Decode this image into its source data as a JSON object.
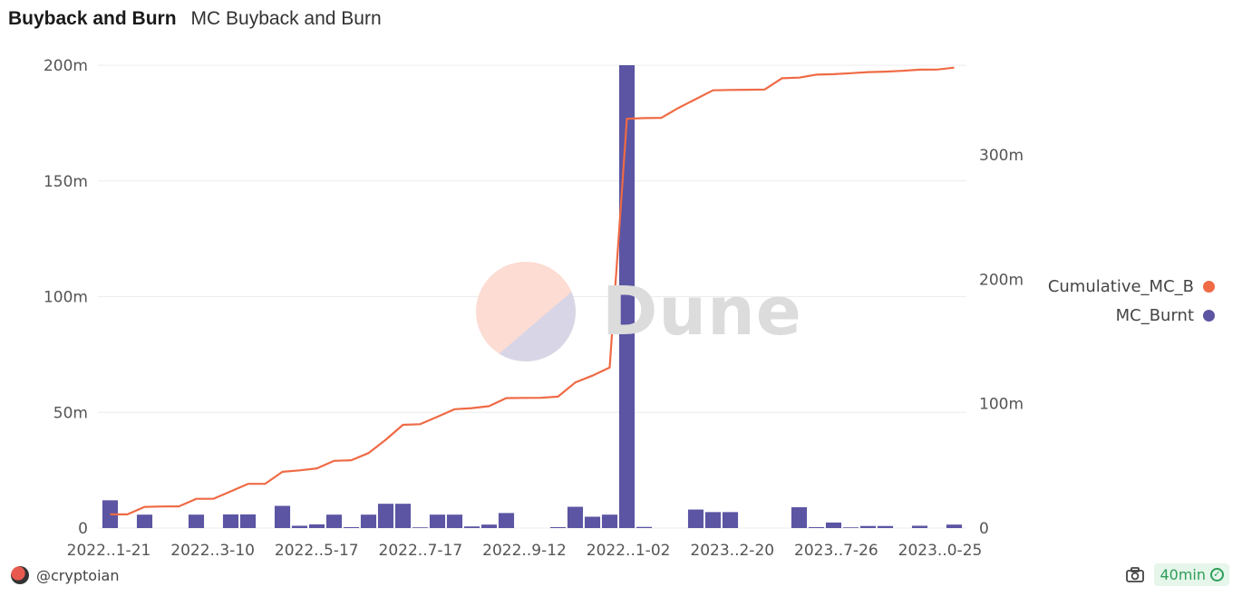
{
  "header": {
    "title": "Buyback and Burn",
    "subtitle": "MC Buyback and Burn"
  },
  "watermark": {
    "text": "Dune"
  },
  "footer": {
    "author": "@cryptoian",
    "refresh_label": "40min"
  },
  "icons": {
    "camera": "camera-icon",
    "check": "check-circle-icon",
    "avatar": "avatar"
  },
  "colors": {
    "bar": "#5b55a3",
    "line": "#ef6a45",
    "grid": "#ececec",
    "text": "#555555"
  },
  "chart_data": {
    "type": "bar+line",
    "title": "",
    "x_tick_labels": [
      "2022..1-21",
      "2022..3-10",
      "2022..5-17",
      "2022..7-17",
      "2022..9-12",
      "2022..1-02",
      "2023..2-20",
      "2023..7-26",
      "2023..0-25"
    ],
    "y_left": {
      "ticks": [
        "0",
        "50m",
        "100m",
        "150m",
        "200m"
      ],
      "range": [
        0,
        200000000
      ]
    },
    "y_right": {
      "ticks": [
        "0",
        "100m",
        "200m",
        "300m"
      ],
      "range": [
        0,
        372000000
      ]
    },
    "legend": {
      "position": "right",
      "entries": [
        {
          "name": "Cumulative_MC_B",
          "color": "#ef6a45"
        },
        {
          "name": "MC_Burnt",
          "color": "#5b55a3"
        }
      ]
    },
    "series": [
      {
        "name": "MC_Burnt",
        "kind": "bar",
        "axis": "left",
        "values": [
          12000000,
          0,
          5800000,
          0,
          0,
          5800000,
          0,
          5900000,
          5900000,
          0,
          9600000,
          1000000,
          1600000,
          5800000,
          400000,
          5800000,
          10500000,
          10500000,
          300000,
          5800000,
          5800000,
          700000,
          1500000,
          6500000,
          0,
          0,
          400000,
          9200000,
          4900000,
          5800000,
          200000000,
          500000,
          0,
          0,
          8000000,
          6900000,
          6900000,
          0,
          0,
          0,
          9000000,
          400000,
          2400000,
          300000,
          900000,
          900000,
          0,
          1000000,
          0,
          1500000
        ]
      },
      {
        "name": "Cumulative_MC_B",
        "kind": "line",
        "axis": "right",
        "values": [
          11000000,
          11000000,
          17000000,
          17300000,
          17500000,
          23500000,
          23600000,
          29500000,
          35500000,
          35600000,
          45200000,
          46400000,
          48000000,
          54000000,
          54500000,
          60300000,
          71000000,
          83000000,
          83500000,
          89500000,
          95500000,
          96400000,
          98000000,
          104500000,
          104600000,
          104700000,
          105600000,
          117000000,
          122500000,
          129000000,
          329000000,
          329500000,
          329700000,
          337700000,
          344800000,
          351800000,
          352100000,
          352300000,
          352500000,
          361500000,
          362000000,
          364400000,
          364800000,
          365600000,
          366500000,
          366800000,
          367500000,
          368400000,
          368500000,
          370000000
        ]
      }
    ]
  }
}
